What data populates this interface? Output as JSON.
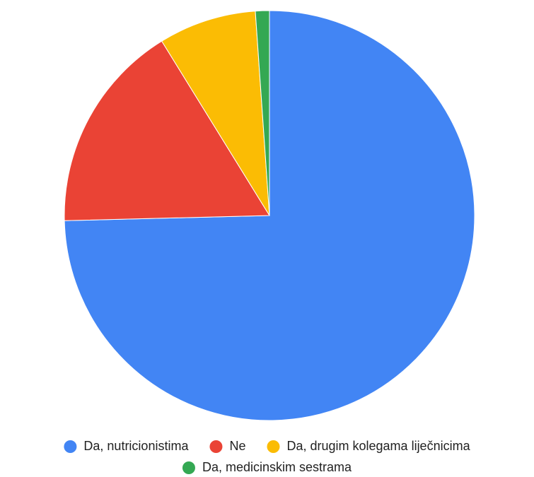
{
  "chart_data": {
    "type": "pie",
    "categories": [
      "Da, nutricionistima",
      "Ne",
      "Da, drugim kolegama liječnicima",
      "Da, medicinskim sestrama"
    ],
    "values": [
      74.6,
      16.6,
      7.7,
      1.1
    ],
    "colors": [
      "#4285f4",
      "#ea4335",
      "#fbbc04",
      "#34a853"
    ],
    "legend": "bottom"
  }
}
